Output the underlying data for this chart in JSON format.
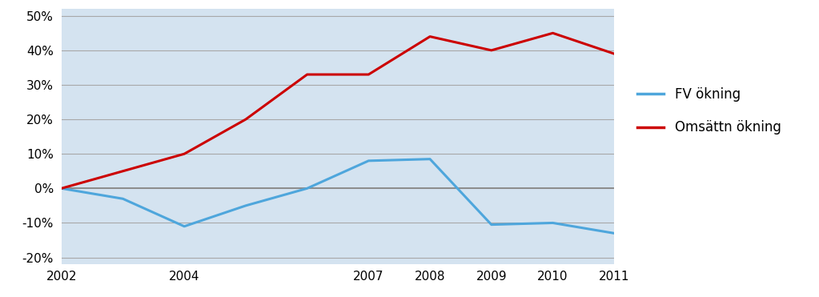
{
  "years": [
    2002,
    2003,
    2004,
    2005,
    2006,
    2007,
    2008,
    2009,
    2010,
    2011
  ],
  "fv_okning": [
    0.0,
    -0.03,
    -0.11,
    -0.05,
    0.0,
    0.08,
    0.085,
    -0.105,
    -0.1,
    -0.13
  ],
  "omsattn_okning": [
    0.0,
    0.05,
    0.1,
    0.2,
    0.33,
    0.33,
    0.44,
    0.4,
    0.45,
    0.39
  ],
  "fv_color": "#4ea6dc",
  "omsattn_color": "#cc0000",
  "plot_area_bg": "#d4e3f0",
  "ylim": [
    -0.22,
    0.52
  ],
  "yticks": [
    -0.2,
    -0.1,
    0.0,
    0.1,
    0.2,
    0.3,
    0.4,
    0.5
  ],
  "shown_years": [
    2002,
    2004,
    2007,
    2008,
    2009,
    2010,
    2011
  ],
  "legend_fv": "FV ökning",
  "legend_omsattn": "Omsättn ökning",
  "line_width": 2.2,
  "tick_fontsize": 11,
  "legend_fontsize": 12
}
